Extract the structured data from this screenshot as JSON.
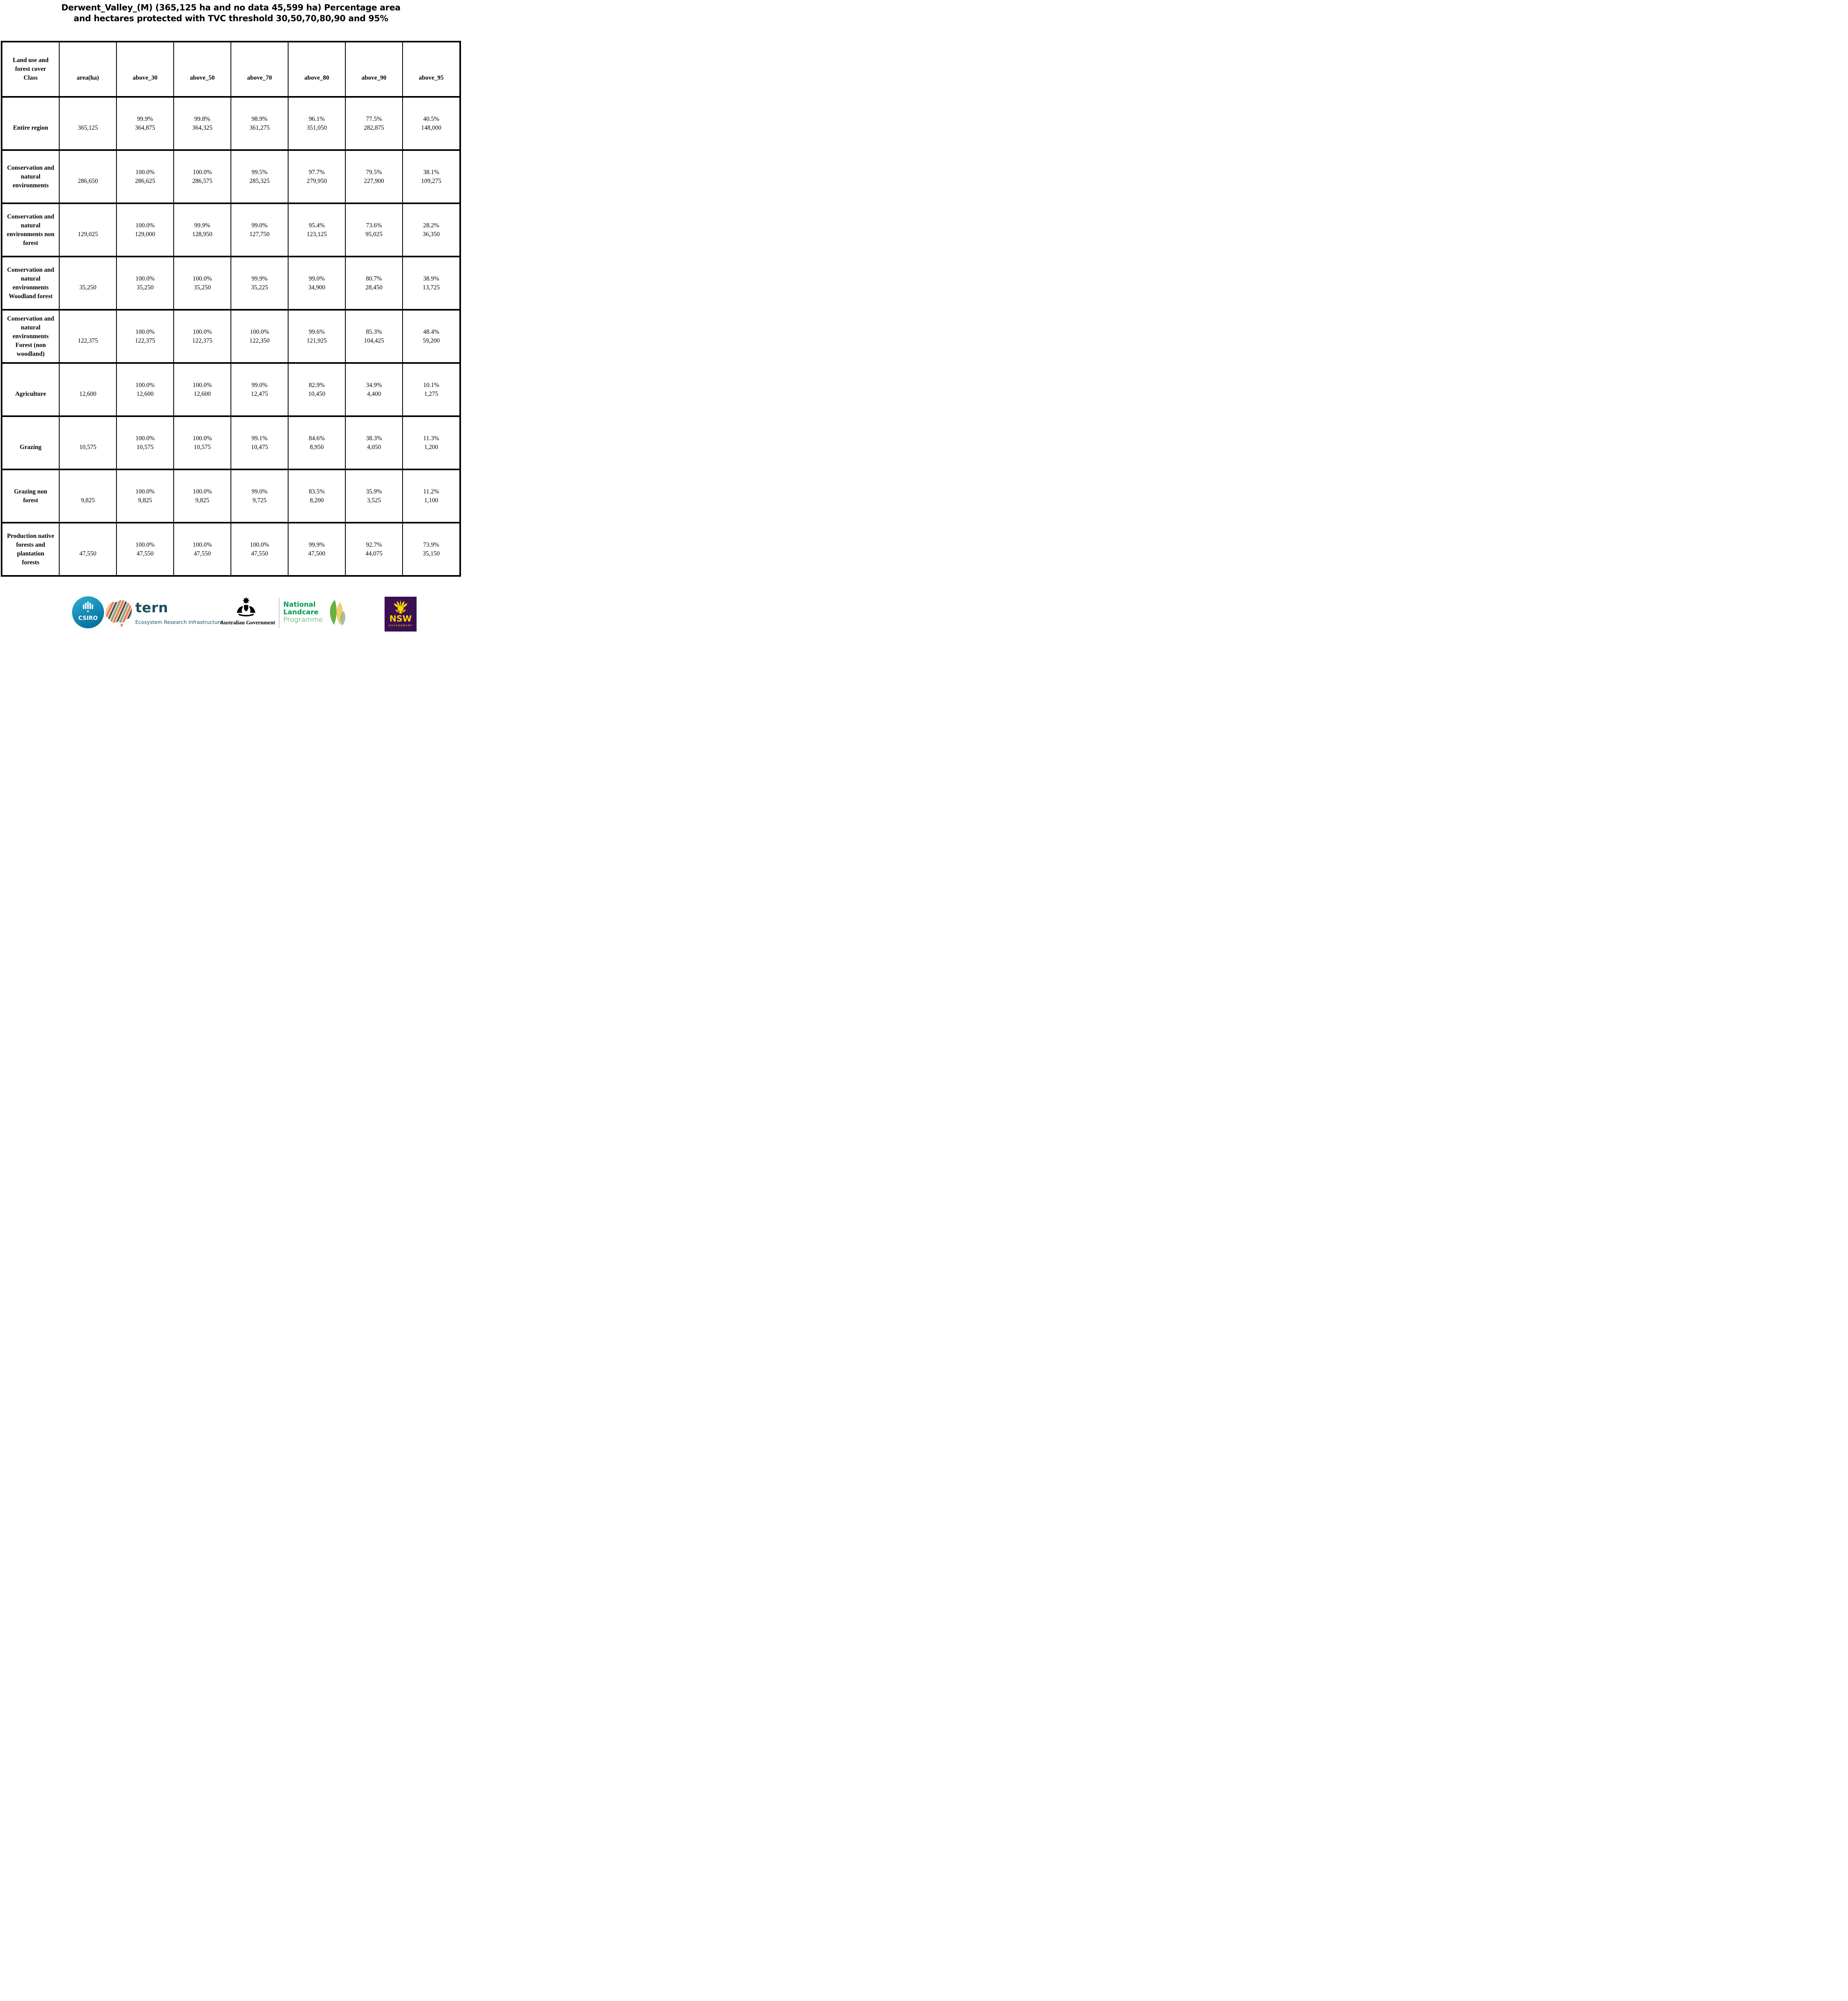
{
  "title": {
    "line1": "Derwent_Valley_(M) (365,125 ha and no data 45,599 ha) Percentage area",
    "line2": "and hectares protected with TVC threshold 30,50,70,80,90 and 95%"
  },
  "table": {
    "columns": [
      "Land use and\nforest cover\nClass",
      "area(ha)",
      "above_30",
      "above_50",
      "above_70",
      "above_80",
      "above_90",
      "above_95"
    ],
    "rows": [
      {
        "label": "Entire region",
        "area": "365,125",
        "values": [
          {
            "pct": "99.9%",
            "ha": "364,875"
          },
          {
            "pct": "99.8%",
            "ha": "364,325"
          },
          {
            "pct": "98.9%",
            "ha": "361,275"
          },
          {
            "pct": "96.1%",
            "ha": "351,050"
          },
          {
            "pct": "77.5%",
            "ha": "282,875"
          },
          {
            "pct": "40.5%",
            "ha": "148,000"
          }
        ]
      },
      {
        "label": "Conservation and\nnatural\nenvironments",
        "area": "286,650",
        "values": [
          {
            "pct": "100.0%",
            "ha": "286,625"
          },
          {
            "pct": "100.0%",
            "ha": "286,575"
          },
          {
            "pct": "99.5%",
            "ha": "285,325"
          },
          {
            "pct": "97.7%",
            "ha": "279,950"
          },
          {
            "pct": "79.5%",
            "ha": "227,900"
          },
          {
            "pct": "38.1%",
            "ha": "109,275"
          }
        ]
      },
      {
        "label": "Conservation and\nnatural\nenvironments non\nforest",
        "area": "129,025",
        "values": [
          {
            "pct": "100.0%",
            "ha": "129,000"
          },
          {
            "pct": "99.9%",
            "ha": "128,950"
          },
          {
            "pct": "99.0%",
            "ha": "127,750"
          },
          {
            "pct": "95.4%",
            "ha": "123,125"
          },
          {
            "pct": "73.6%",
            "ha": "95,025"
          },
          {
            "pct": "28.2%",
            "ha": "36,350"
          }
        ]
      },
      {
        "label": "Conservation and\nnatural\nenvironments\nWoodland forest",
        "area": "35,250",
        "values": [
          {
            "pct": "100.0%",
            "ha": "35,250"
          },
          {
            "pct": "100.0%",
            "ha": "35,250"
          },
          {
            "pct": "99.9%",
            "ha": "35,225"
          },
          {
            "pct": "99.0%",
            "ha": "34,900"
          },
          {
            "pct": "80.7%",
            "ha": "28,450"
          },
          {
            "pct": "38.9%",
            "ha": "13,725"
          }
        ]
      },
      {
        "label": "Conservation and\nnatural\nenvironments\nForest (non\nwoodland)",
        "area": "122,375",
        "values": [
          {
            "pct": "100.0%",
            "ha": "122,375"
          },
          {
            "pct": "100.0%",
            "ha": "122,375"
          },
          {
            "pct": "100.0%",
            "ha": "122,350"
          },
          {
            "pct": "99.6%",
            "ha": "121,925"
          },
          {
            "pct": "85.3%",
            "ha": "104,425"
          },
          {
            "pct": "48.4%",
            "ha": "59,200"
          }
        ]
      },
      {
        "label": "Agriculture",
        "area": "12,600",
        "values": [
          {
            "pct": "100.0%",
            "ha": "12,600"
          },
          {
            "pct": "100.0%",
            "ha": "12,600"
          },
          {
            "pct": "99.0%",
            "ha": "12,475"
          },
          {
            "pct": "82.9%",
            "ha": "10,450"
          },
          {
            "pct": "34.9%",
            "ha": "4,400"
          },
          {
            "pct": "10.1%",
            "ha": "1,275"
          }
        ]
      },
      {
        "label": "Grazing",
        "area": "10,575",
        "values": [
          {
            "pct": "100.0%",
            "ha": "10,575"
          },
          {
            "pct": "100.0%",
            "ha": "10,575"
          },
          {
            "pct": "99.1%",
            "ha": "10,475"
          },
          {
            "pct": "84.6%",
            "ha": "8,950"
          },
          {
            "pct": "38.3%",
            "ha": "4,050"
          },
          {
            "pct": "11.3%",
            "ha": "1,200"
          }
        ]
      },
      {
        "label": "Grazing non\nforest",
        "area": "9,825",
        "values": [
          {
            "pct": "100.0%",
            "ha": "9,825"
          },
          {
            "pct": "100.0%",
            "ha": "9,825"
          },
          {
            "pct": "99.0%",
            "ha": "9,725"
          },
          {
            "pct": "83.5%",
            "ha": "8,200"
          },
          {
            "pct": "35.9%",
            "ha": "3,525"
          },
          {
            "pct": "11.2%",
            "ha": "1,100"
          }
        ]
      },
      {
        "label": "Production native\nforests and\nplantation\nforests",
        "area": "47,550",
        "values": [
          {
            "pct": "100.0%",
            "ha": "47,550"
          },
          {
            "pct": "100.0%",
            "ha": "47,550"
          },
          {
            "pct": "100.0%",
            "ha": "47,550"
          },
          {
            "pct": "99.9%",
            "ha": "47,500"
          },
          {
            "pct": "92.7%",
            "ha": "44,075"
          },
          {
            "pct": "73.9%",
            "ha": "35,150"
          }
        ]
      }
    ]
  },
  "footer": {
    "csiro": {
      "label": "CSIRO"
    },
    "tern": {
      "label": "tern",
      "tagline": "Ecosystem Research Infrastructure"
    },
    "aus_gov": {
      "label": "Australian Government"
    },
    "landcare": {
      "line1": "National",
      "line2": "Landcare",
      "line3": "Programme"
    },
    "nsw": {
      "label": "NSW",
      "sublabel": "GOVERNMENT"
    }
  },
  "colors": {
    "text": "#000000",
    "csiro_blue_top": "#2aa7cc",
    "csiro_blue_bottom": "#006f9e",
    "tern_dark_teal": "#1c4f5e",
    "tern_map_peach": "#f6c9a4",
    "tern_map_orange": "#e4714b",
    "tern_map_sage": "#6fa39c",
    "landcare_green": "#009a4e",
    "landcare_light_green": "#7dbf8e",
    "leaf_green": "#58a72e",
    "leaf_yellow": "#f0c23f",
    "nsw_purple": "#3b1053",
    "nsw_yellow": "#ffd200"
  }
}
